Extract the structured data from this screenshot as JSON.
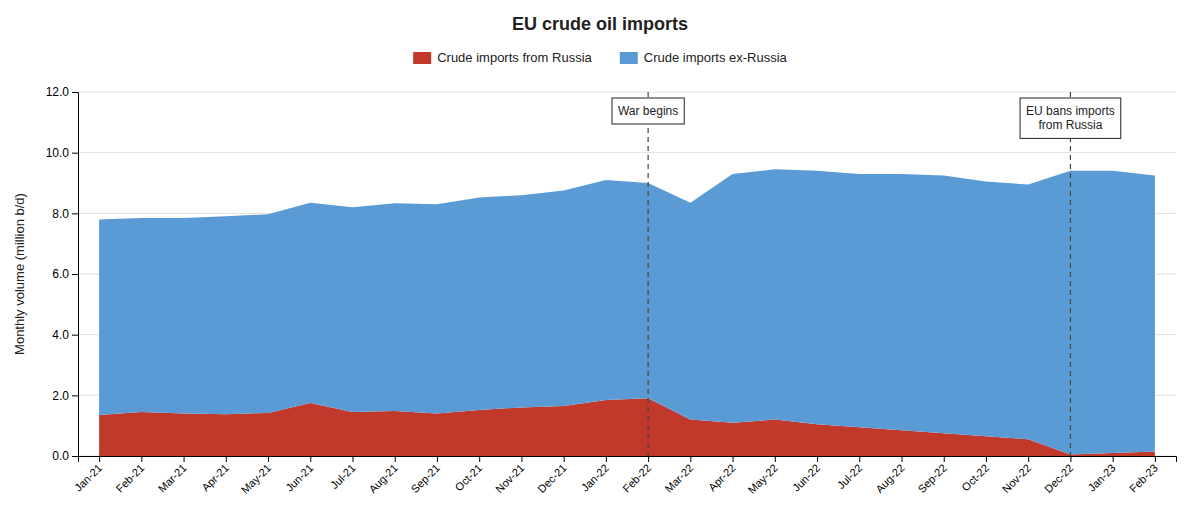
{
  "chart_data": {
    "type": "area",
    "stacked": true,
    "title": "EU crude oil imports",
    "y_label": "Monthly volume (million b/d)",
    "categories": [
      "Jan-21",
      "Feb-21",
      "Mar-21",
      "Apr-21",
      "May-21",
      "Jun-21",
      "Jul-21",
      "Aug-21",
      "Sep-21",
      "Oct-21",
      "Nov-21",
      "Dec-21",
      "Jan-22",
      "Feb-22",
      "Mar-22",
      "Apr-22",
      "May-22",
      "Jun-22",
      "Jul-22",
      "Aug-22",
      "Sep-22",
      "Oct-22",
      "Nov-22",
      "Dec-22",
      "Jan-23",
      "Feb-23"
    ],
    "series": [
      {
        "name": "Crude imports from Russia",
        "color": "#c0392b",
        "values": [
          1.35,
          1.45,
          1.4,
          1.38,
          1.42,
          1.75,
          1.45,
          1.48,
          1.4,
          1.52,
          1.6,
          1.65,
          1.85,
          1.9,
          1.2,
          1.1,
          1.2,
          1.05,
          0.95,
          0.85,
          0.75,
          0.65,
          0.55,
          0.05,
          0.1,
          0.15
        ]
      },
      {
        "name": "Crude imports ex-Russia",
        "color": "#5b9bd5",
        "values": [
          6.45,
          6.4,
          6.45,
          6.52,
          6.55,
          6.6,
          6.75,
          6.85,
          6.9,
          7.0,
          7.0,
          7.1,
          7.25,
          7.1,
          7.15,
          8.2,
          8.25,
          8.35,
          8.35,
          8.45,
          8.5,
          8.4,
          8.4,
          9.35,
          9.3,
          9.1
        ]
      }
    ],
    "ylim": [
      0,
      12.0
    ],
    "yticks": [
      {
        "value": 0.0,
        "label": "0.0"
      },
      {
        "value": 2.0,
        "label": "2.0"
      },
      {
        "value": 4.0,
        "label": "4.0"
      },
      {
        "value": 6.0,
        "label": "6.0"
      },
      {
        "value": 8.0,
        "label": "8.0"
      },
      {
        "value": 10.0,
        "label": "10.0"
      },
      {
        "value": 12.0,
        "label": "12.0"
      }
    ],
    "grid": true,
    "legend": "top",
    "annotations": [
      {
        "text": "War begins",
        "x": "Feb-22"
      },
      {
        "text": "EU bans imports\nfrom Russia",
        "x": "Dec-22"
      }
    ]
  }
}
